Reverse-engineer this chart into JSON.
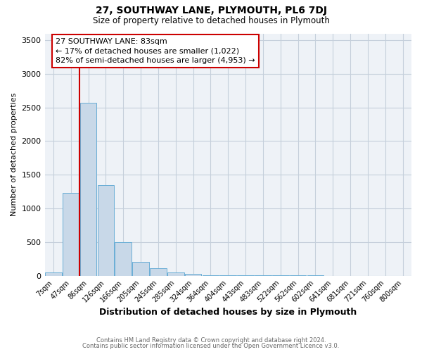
{
  "title1": "27, SOUTHWAY LANE, PLYMOUTH, PL6 7DJ",
  "title2": "Size of property relative to detached houses in Plymouth",
  "xlabel": "Distribution of detached houses by size in Plymouth",
  "ylabel": "Number of detached properties",
  "bar_labels": [
    "7sqm",
    "47sqm",
    "86sqm",
    "126sqm",
    "166sqm",
    "205sqm",
    "245sqm",
    "285sqm",
    "324sqm",
    "364sqm",
    "404sqm",
    "443sqm",
    "483sqm",
    "522sqm",
    "562sqm",
    "602sqm",
    "641sqm",
    "681sqm",
    "721sqm",
    "760sqm",
    "800sqm"
  ],
  "bar_values": [
    50,
    1230,
    2570,
    1350,
    500,
    200,
    110,
    50,
    30,
    10,
    5,
    3,
    2,
    1,
    1,
    1,
    0,
    0,
    0,
    0,
    0
  ],
  "bar_color": "#c8d8e8",
  "bar_edge_color": "#6aaed6",
  "annotation_text": "27 SOUTHWAY LANE: 83sqm\n← 17% of detached houses are smaller (1,022)\n82% of semi-detached houses are larger (4,953) →",
  "annotation_box_color": "white",
  "annotation_box_edgecolor": "#cc0000",
  "red_line_color": "#cc0000",
  "ylim": [
    0,
    3600
  ],
  "yticks": [
    0,
    500,
    1000,
    1500,
    2000,
    2500,
    3000,
    3500
  ],
  "footer1": "Contains HM Land Registry data © Crown copyright and database right 2024.",
  "footer2": "Contains public sector information licensed under the Open Government Licence v3.0.",
  "bg_color": "#ffffff",
  "plot_bg_color": "#eef2f7",
  "grid_color": "#c5cfdb"
}
